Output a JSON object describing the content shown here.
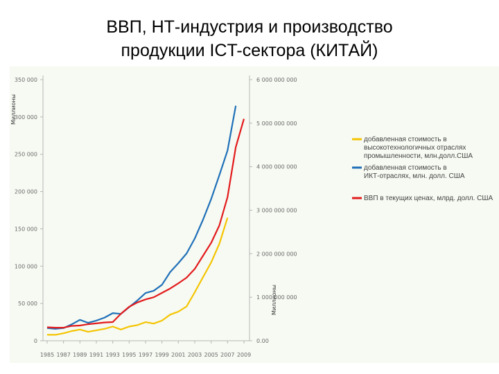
{
  "slide": {
    "title_line1": "ВВП, НТ-индустрия  и производство",
    "title_line2": "продукции ICT-сектора (КИТАЙ)"
  },
  "chart_data": {
    "type": "line",
    "title": "ВВП, НТ-индустрия  и производство продукции ICT-сектора (КИТАЙ)",
    "x": [
      1985,
      1986,
      1987,
      1988,
      1989,
      1990,
      1991,
      1992,
      1993,
      1994,
      1995,
      1996,
      1997,
      1998,
      1999,
      2000,
      2001,
      2002,
      2003,
      2004,
      2005,
      2006,
      2007,
      2008,
      2009
    ],
    "x_tick_labels": [
      "1985",
      "1987",
      "1989",
      "1991",
      "1993",
      "1995",
      "1997",
      "1999",
      "2001",
      "2003",
      "2005",
      "2007",
      "2009"
    ],
    "left_axis": {
      "label": "Миллионы",
      "range": [
        0,
        350000
      ],
      "tick_labels": [
        "0",
        "50 000",
        "100 000",
        "150 000",
        "200 000",
        "250 000",
        "300 000",
        "350 000"
      ]
    },
    "right_axis": {
      "label": "Миллионы",
      "range": [
        0,
        6000000000
      ],
      "tick_labels": [
        "0.00",
        "1 000 000 000",
        "2 000 000 000",
        "3 000 000 000",
        "4 000 000 000",
        "5 000 000 000",
        "6 000 000 000"
      ]
    },
    "series": [
      {
        "name": "добавленная стоимость в высокотехнологичных отраслях промышленности, млн.долл.США",
        "color": "#f5c400",
        "axis": "left",
        "values": [
          8000,
          8000,
          10000,
          13000,
          15000,
          12000,
          14000,
          16000,
          19000,
          15000,
          19000,
          21000,
          25000,
          23000,
          27000,
          35000,
          39000,
          46000,
          65000,
          85000,
          105000,
          130000,
          165000,
          null,
          null
        ]
      },
      {
        "name": "добавленная стоимость в ИКТ-отраслях, млн. долл. США",
        "color": "#1f6fb8",
        "axis": "left",
        "values": [
          17000,
          16000,
          17000,
          22000,
          28000,
          24000,
          27000,
          31000,
          37000,
          36000,
          45000,
          54000,
          64000,
          67000,
          75000,
          92000,
          104000,
          117000,
          137000,
          162000,
          190000,
          222000,
          255000,
          315000,
          null
        ]
      },
      {
        "name": "ВВП в текущих ценах, млрд. долл. США",
        "color": "#e31a1c",
        "axis": "right",
        "values": [
          310000000,
          300000000,
          300000000,
          340000000,
          350000000,
          380000000,
          400000000,
          420000000,
          430000000,
          620000000,
          780000000,
          880000000,
          950000000,
          1000000000,
          1100000000,
          1200000000,
          1320000000,
          1450000000,
          1650000000,
          1950000000,
          2250000000,
          2650000000,
          3300000000,
          4450000000,
          5100000000
        ]
      }
    ],
    "legend_position": "right",
    "grid": false
  }
}
